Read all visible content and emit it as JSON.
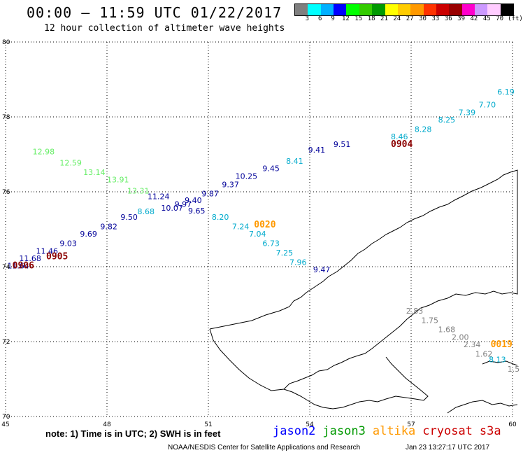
{
  "title": "00:00 – 11:59 UTC 01/22/2017",
  "subtitle": "12 hour collection of altimeter wave heights",
  "legend": {
    "unit": "(ft)",
    "values": [
      "3",
      "6",
      "9",
      "12",
      "15",
      "18",
      "21",
      "24",
      "27",
      "30",
      "33",
      "36",
      "39",
      "42",
      "45",
      "70"
    ],
    "colors": [
      "#7f7f7f",
      "#00ffff",
      "#00b0ff",
      "#0000ff",
      "#00ff00",
      "#33cc00",
      "#009900",
      "#ffff00",
      "#ffcc00",
      "#ff9900",
      "#ff3300",
      "#cc0000",
      "#990000",
      "#ff00cc",
      "#cc99ff",
      "#ffccff",
      "#000000"
    ]
  },
  "chart_data": {
    "type": "map",
    "x_ticks": [
      "45",
      "48",
      "51",
      "54",
      "57",
      "60"
    ],
    "y_ticks": [
      "70",
      "72",
      "74",
      "76",
      "78",
      "80"
    ],
    "xlim": [
      45,
      60
    ],
    "ylim": [
      70,
      80
    ],
    "time_labels": [
      {
        "text": "0905",
        "lon": 46.2,
        "lat": 74.2,
        "color": "#8b0000"
      },
      {
        "text": "0906",
        "lon": 45.2,
        "lat": 73.95,
        "color": "#8b0000"
      },
      {
        "text": "0020",
        "lon": 52.35,
        "lat": 75.05,
        "color": "#ff9900"
      },
      {
        "text": "0904",
        "lon": 56.4,
        "lat": 77.2,
        "color": "#8b0000"
      },
      {
        "text": "0019",
        "lon": 59.35,
        "lat": 71.85,
        "color": "#ff9900"
      }
    ],
    "wave_labels": [
      {
        "text": "12.98",
        "lon": 45.8,
        "lat": 77.0,
        "color": "#66ee66"
      },
      {
        "text": "12.59",
        "lon": 46.6,
        "lat": 76.7,
        "color": "#66ee66"
      },
      {
        "text": "13.14",
        "lon": 47.3,
        "lat": 76.45,
        "color": "#66ee66"
      },
      {
        "text": "13.91",
        "lon": 48.0,
        "lat": 76.25,
        "color": "#66ee66"
      },
      {
        "text": "13.31",
        "lon": 48.6,
        "lat": 75.95,
        "color": "#66ee66"
      },
      {
        "text": "11.24",
        "lon": 49.2,
        "lat": 75.8,
        "color": "#000099"
      },
      {
        "text": "10.07",
        "lon": 49.6,
        "lat": 75.5,
        "color": "#000099"
      },
      {
        "text": "9.97",
        "lon": 50.0,
        "lat": 75.6,
        "color": "#000099"
      },
      {
        "text": "9.40",
        "lon": 50.3,
        "lat": 75.7,
        "color": "#000099"
      },
      {
        "text": "9.87",
        "lon": 50.8,
        "lat": 75.88,
        "color": "#000099"
      },
      {
        "text": "9.65",
        "lon": 50.4,
        "lat": 75.42,
        "color": "#000099"
      },
      {
        "text": "9.37",
        "lon": 51.4,
        "lat": 76.12,
        "color": "#000099"
      },
      {
        "text": "10.25",
        "lon": 51.8,
        "lat": 76.35,
        "color": "#000099"
      },
      {
        "text": "9.45",
        "lon": 52.6,
        "lat": 76.55,
        "color": "#000099"
      },
      {
        "text": "9.41",
        "lon": 53.95,
        "lat": 77.05,
        "color": "#000099"
      },
      {
        "text": "9.51",
        "lon": 54.7,
        "lat": 77.2,
        "color": "#000099"
      },
      {
        "text": "8.68",
        "lon": 48.9,
        "lat": 75.4,
        "color": "#00aacc"
      },
      {
        "text": "9.50",
        "lon": 48.4,
        "lat": 75.25,
        "color": "#000099"
      },
      {
        "text": "9.82",
        "lon": 47.8,
        "lat": 75.0,
        "color": "#000099"
      },
      {
        "text": "9.69",
        "lon": 47.2,
        "lat": 74.8,
        "color": "#000099"
      },
      {
        "text": "9.03",
        "lon": 46.6,
        "lat": 74.55,
        "color": "#000099"
      },
      {
        "text": "11.46",
        "lon": 45.9,
        "lat": 74.35,
        "color": "#000099"
      },
      {
        "text": "11.68",
        "lon": 45.4,
        "lat": 74.15,
        "color": "#000099"
      },
      {
        "text": "11.64",
        "lon": 45.05,
        "lat": 73.95,
        "color": "#000099"
      },
      {
        "text": "8.41",
        "lon": 53.3,
        "lat": 76.75,
        "color": "#00aacc"
      },
      {
        "text": "8.46",
        "lon": 56.4,
        "lat": 77.4,
        "color": "#00aacc"
      },
      {
        "text": "8.28",
        "lon": 57.1,
        "lat": 77.6,
        "color": "#00aacc"
      },
      {
        "text": "8.25",
        "lon": 57.8,
        "lat": 77.85,
        "color": "#00aacc"
      },
      {
        "text": "7.39",
        "lon": 58.4,
        "lat": 78.05,
        "color": "#00aacc"
      },
      {
        "text": "7.70",
        "lon": 59.0,
        "lat": 78.25,
        "color": "#00aacc"
      },
      {
        "text": "6.19",
        "lon": 59.55,
        "lat": 78.6,
        "color": "#00aacc"
      },
      {
        "text": "8.20",
        "lon": 51.1,
        "lat": 75.25,
        "color": "#00aacc"
      },
      {
        "text": "7.24",
        "lon": 51.7,
        "lat": 75.0,
        "color": "#00aacc"
      },
      {
        "text": "7.04",
        "lon": 52.2,
        "lat": 74.8,
        "color": "#00aacc"
      },
      {
        "text": "6.73",
        "lon": 52.6,
        "lat": 74.55,
        "color": "#00aacc"
      },
      {
        "text": "7.25",
        "lon": 53.0,
        "lat": 74.3,
        "color": "#00aacc"
      },
      {
        "text": "7.96",
        "lon": 53.4,
        "lat": 74.05,
        "color": "#00aacc"
      },
      {
        "text": "9.47",
        "lon": 54.1,
        "lat": 73.85,
        "color": "#000099"
      },
      {
        "text": "2.83",
        "lon": 56.85,
        "lat": 72.75,
        "color": "#808080"
      },
      {
        "text": "1.75",
        "lon": 57.3,
        "lat": 72.5,
        "color": "#808080"
      },
      {
        "text": "1.68",
        "lon": 57.8,
        "lat": 72.25,
        "color": "#808080"
      },
      {
        "text": "2.00",
        "lon": 58.2,
        "lat": 72.05,
        "color": "#808080"
      },
      {
        "text": "2.34",
        "lon": 58.55,
        "lat": 71.85,
        "color": "#808080"
      },
      {
        "text": "1.62",
        "lon": 58.9,
        "lat": 71.6,
        "color": "#808080"
      },
      {
        "text": "8.13",
        "lon": 59.3,
        "lat": 71.45,
        "color": "#00aacc"
      },
      {
        "text": "1.5",
        "lon": 59.85,
        "lat": 71.2,
        "color": "#808080"
      }
    ]
  },
  "note": "note:  1) Time is in UTC;  2) SWH is in feet",
  "satellites": [
    {
      "name": "jason2",
      "color": "#0000ff"
    },
    {
      "name": "jason3",
      "color": "#009900"
    },
    {
      "name": "altika",
      "color": "#ff9900"
    },
    {
      "name": "cryosat",
      "color": "#cc0000"
    },
    {
      "name": "s3a",
      "color": "#cc0000"
    }
  ],
  "footer_left": "NOAA/NESDIS Center for Satellite Applications and Research",
  "footer_right": "Jan 23 13:27:17 UTC 2017"
}
